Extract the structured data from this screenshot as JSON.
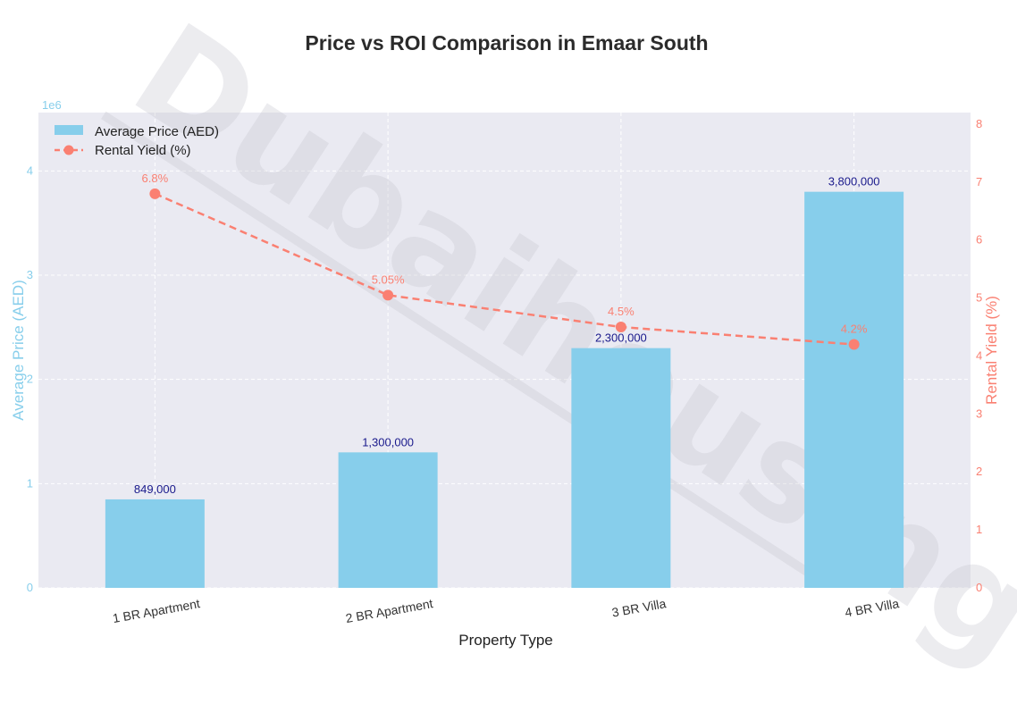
{
  "chart_data": {
    "type": "bar",
    "title": "Price vs ROI Comparison in Emaar South",
    "xlabel": "Property Type",
    "ylabel": "Average Price (AED)",
    "y2label": "Rental Yield (%)",
    "y_offset_label": "1e6",
    "categories": [
      "1 BR Apartment",
      "2 BR Apartment",
      "3 BR Villa",
      "4 BR Villa"
    ],
    "ylim": [
      0,
      4560000
    ],
    "yticks": [
      0,
      1000000,
      2000000,
      3000000,
      4000000
    ],
    "ytick_labels": [
      "0",
      "1",
      "2",
      "3",
      "4"
    ],
    "y2lim": [
      0,
      8.2
    ],
    "y2ticks": [
      0,
      1,
      2,
      3,
      4,
      5,
      6,
      7,
      8
    ],
    "y2tick_labels": [
      "0",
      "1",
      "2",
      "3",
      "4",
      "5",
      "6",
      "7",
      "8"
    ],
    "series": [
      {
        "name": "Average Price (AED)",
        "kind": "bar",
        "axis": "left",
        "values": [
          849000,
          1300000,
          2300000,
          3800000
        ],
        "labels": [
          "849,000",
          "1,300,000",
          "2,300,000",
          "3,800,000"
        ]
      },
      {
        "name": "Rental Yield (%)",
        "kind": "line",
        "axis": "right",
        "values": [
          6.8,
          5.05,
          4.5,
          4.2
        ],
        "labels": [
          "6.8%",
          "5.05%",
          "4.5%",
          "4.2%"
        ]
      }
    ],
    "grid": true,
    "legend_position": "top-left",
    "watermark": "Dubaihousing",
    "colors": {
      "bar": "#87ceeb",
      "line": "#fa8072",
      "bar_label": "#1a1a8c",
      "plot_bg": "#eaeaf2",
      "left_axis": "#87ceeb",
      "right_axis": "#fa8072"
    }
  }
}
